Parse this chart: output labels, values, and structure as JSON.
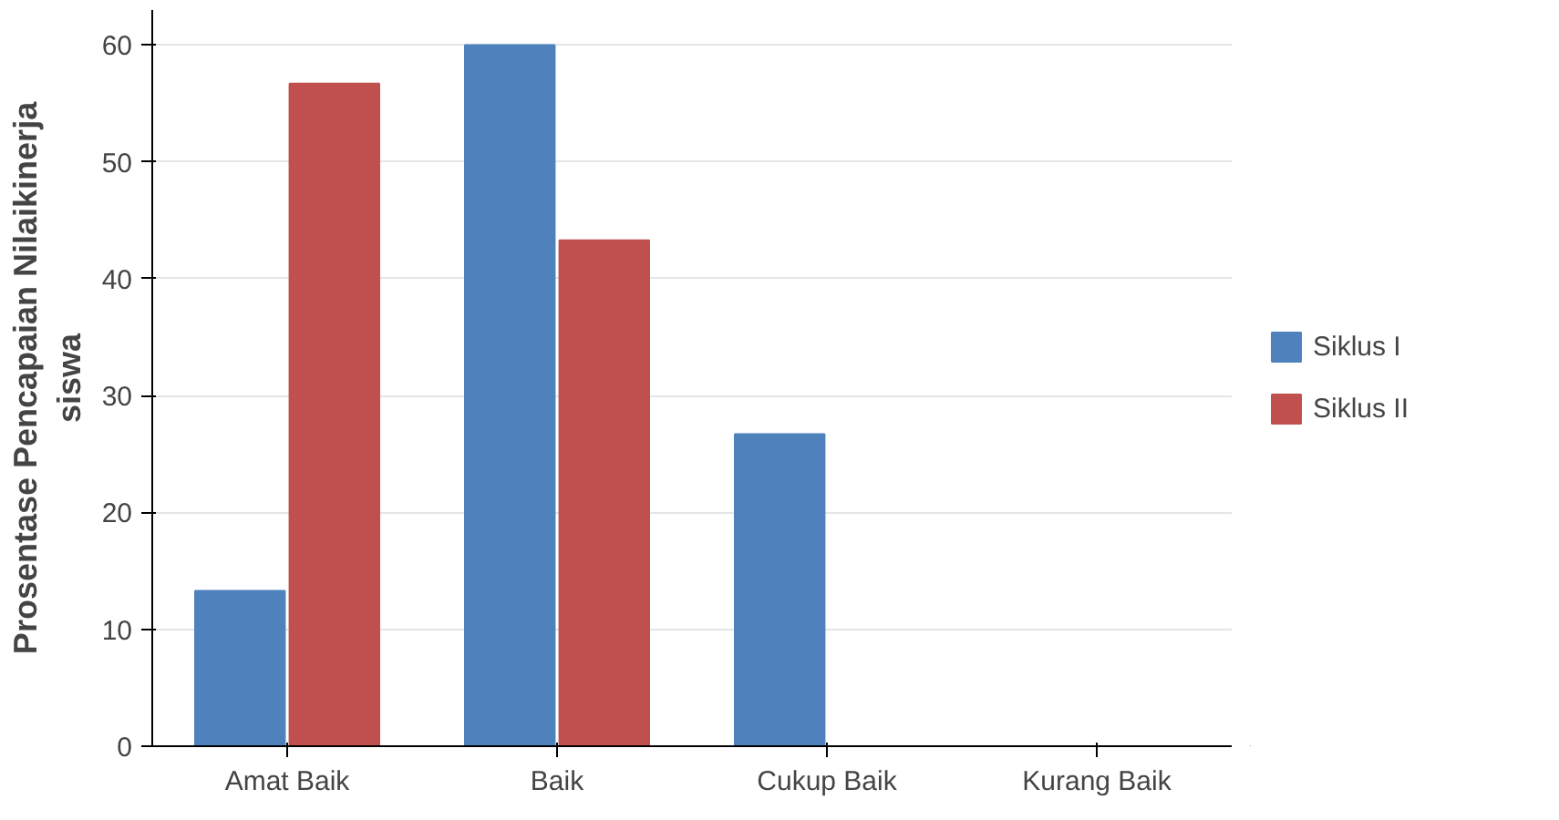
{
  "chart_data": {
    "type": "bar",
    "ylabel": "Prosentase Pencapaian Nilaikinerja\nsiswa",
    "categories": [
      "Amat Baik",
      "Baik",
      "Cukup Baik",
      "Kurang Baik"
    ],
    "series": [
      {
        "name": "Siklus I",
        "color": "#4f81bd",
        "values": [
          13.3,
          60,
          26.7,
          0
        ]
      },
      {
        "name": "Siklus II",
        "color": "#c0504d",
        "values": [
          56.7,
          43.3,
          0,
          0
        ]
      }
    ],
    "ylim": [
      0,
      63
    ],
    "yticks": [
      0,
      10,
      20,
      30,
      40,
      50,
      60
    ],
    "grid": "y",
    "legend": "right"
  }
}
